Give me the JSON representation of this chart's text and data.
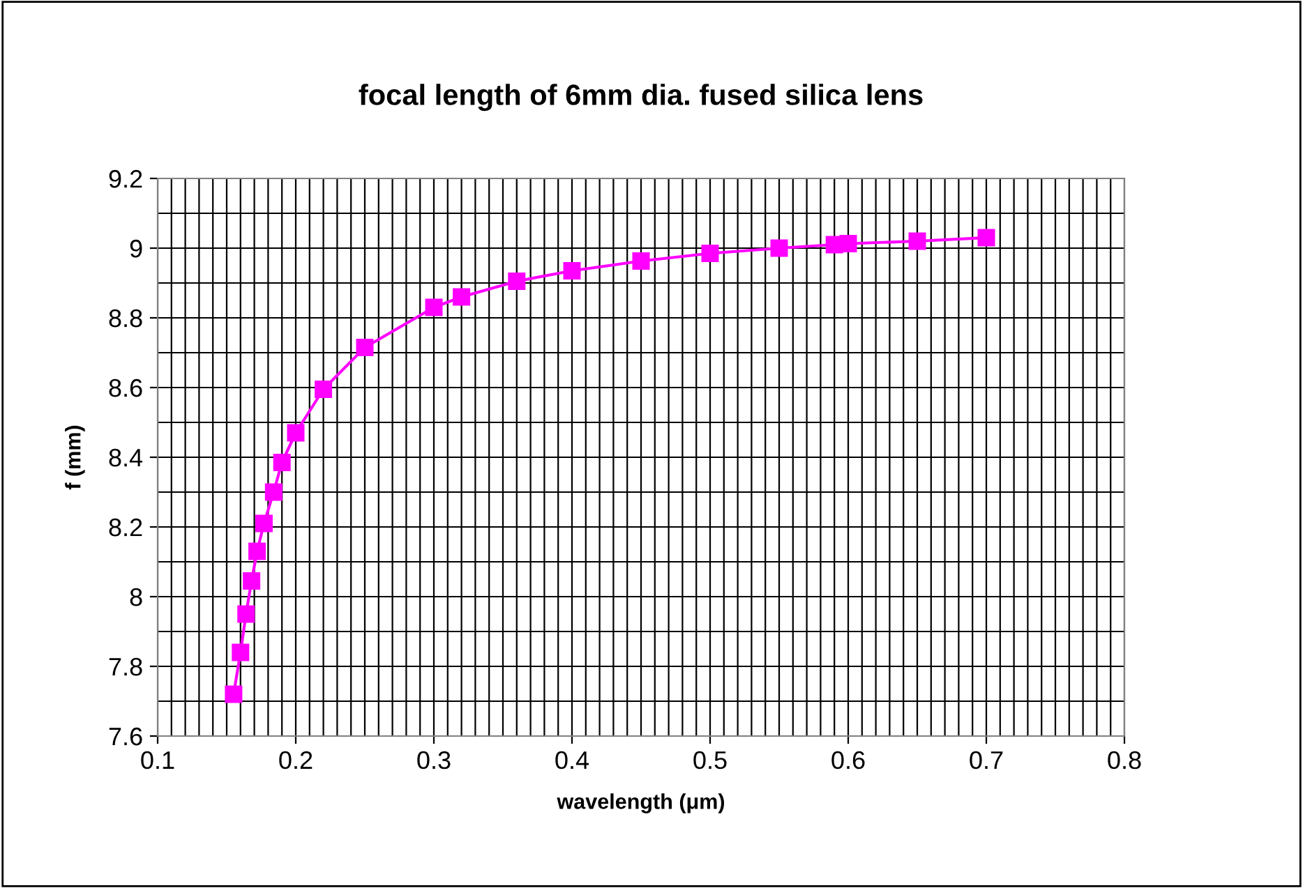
{
  "chart_data": {
    "type": "line",
    "title": "focal length of 6mm dia. fused silica lens",
    "xlabel": "wavelength (μm)",
    "ylabel": "f (mm)",
    "x": [
      0.155,
      0.16,
      0.164,
      0.168,
      0.172,
      0.177,
      0.184,
      0.19,
      0.2,
      0.22,
      0.25,
      0.3,
      0.32,
      0.36,
      0.4,
      0.45,
      0.5,
      0.55,
      0.59,
      0.6,
      0.65,
      0.7
    ],
    "series": [
      {
        "color": "#ff00ff",
        "values": [
          7.72,
          7.84,
          7.95,
          8.045,
          8.13,
          8.21,
          8.3,
          8.385,
          8.47,
          8.595,
          8.715,
          8.83,
          8.86,
          8.905,
          8.935,
          8.963,
          8.985,
          9.0,
          9.01,
          9.013,
          9.02,
          9.03
        ]
      }
    ],
    "xlim": [
      0.1,
      0.8
    ],
    "ylim": [
      7.6,
      9.2
    ],
    "xticks": [
      0.1,
      0.2,
      0.3,
      0.4,
      0.5,
      0.6,
      0.7,
      0.8
    ],
    "yticks": [
      7.6,
      7.8,
      8,
      8.2,
      8.4,
      8.6,
      8.8,
      9,
      9.2
    ],
    "grid": true,
    "legend": false,
    "marker": "square",
    "line_style": "solid"
  }
}
